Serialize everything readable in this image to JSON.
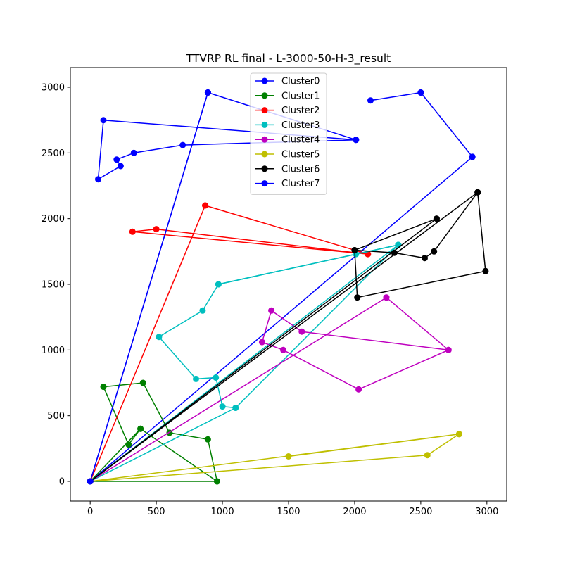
{
  "chart_data": {
    "type": "line",
    "title": "TTVRP RL final - L-3000-50-H-3_result",
    "xlabel": "",
    "ylabel": "",
    "xlim": [
      -150,
      3150
    ],
    "ylim": [
      -150,
      3150
    ],
    "x_ticks": [
      0,
      500,
      1000,
      1500,
      2000,
      2500,
      3000
    ],
    "y_ticks": [
      0,
      500,
      1000,
      1500,
      2000,
      2500,
      3000
    ],
    "x_tick_labels": [
      "0",
      "500",
      "1000",
      "1500",
      "2000",
      "2500",
      "3000"
    ],
    "y_tick_labels": [
      "0",
      "500",
      "1000",
      "1500",
      "2000",
      "2500",
      "3000"
    ],
    "grid": false,
    "legend_position": "top-center",
    "series": [
      {
        "name": "Cluster0",
        "color": "#0000ff",
        "routes": [
          [
            [
              0,
              0
            ],
            [
              890,
              2960
            ],
            [
              2010,
              2600
            ],
            [
              100,
              2750
            ],
            [
              60,
              2300
            ],
            [
              230,
              2400
            ],
            [
              200,
              2450
            ],
            [
              330,
              2500
            ],
            [
              700,
              2560
            ],
            [
              2010,
              2600
            ],
            [
              890,
              2960
            ],
            [
              0,
              0
            ]
          ],
          [
            [
              0,
              0
            ],
            [
              2890,
              2470
            ],
            [
              2500,
              2960
            ],
            [
              2120,
              2900
            ],
            [
              2500,
              2960
            ],
            [
              2890,
              2470
            ],
            [
              0,
              0
            ]
          ]
        ]
      },
      {
        "name": "Cluster1",
        "color": "#008000",
        "routes": [
          [
            [
              0,
              0
            ],
            [
              960,
              0
            ],
            [
              380,
              400
            ],
            [
              290,
              280
            ],
            [
              100,
              720
            ],
            [
              400,
              750
            ],
            [
              600,
              370
            ],
            [
              890,
              320
            ],
            [
              960,
              0
            ],
            [
              380,
              400
            ],
            [
              0,
              0
            ]
          ]
        ]
      },
      {
        "name": "Cluster2",
        "color": "#ff0000",
        "routes": [
          [
            [
              0,
              0
            ],
            [
              870,
              2100
            ],
            [
              2100,
              1730
            ],
            [
              500,
              1920
            ],
            [
              320,
              1900
            ],
            [
              2100,
              1730
            ],
            [
              870,
              2100
            ],
            [
              0,
              0
            ]
          ]
        ]
      },
      {
        "name": "Cluster3",
        "color": "#00bfbf",
        "routes": [
          [
            [
              0,
              0
            ],
            [
              1100,
              560
            ],
            [
              2330,
              1800
            ],
            [
              970,
              1500
            ],
            [
              850,
              1300
            ],
            [
              520,
              1100
            ],
            [
              800,
              780
            ],
            [
              950,
              790
            ],
            [
              1000,
              570
            ],
            [
              1100,
              560
            ],
            [
              0,
              0
            ]
          ],
          [
            [
              0,
              0
            ],
            [
              2330,
              1800
            ],
            [
              2010,
              1730
            ],
            [
              970,
              1500
            ],
            [
              2330,
              1800
            ],
            [
              0,
              0
            ]
          ]
        ]
      },
      {
        "name": "Cluster4",
        "color": "#bf00bf",
        "routes": [
          [
            [
              0,
              0
            ],
            [
              2240,
              1400
            ],
            [
              2710,
              1000
            ],
            [
              1600,
              1140
            ],
            [
              1370,
              1300
            ],
            [
              1300,
              1060
            ],
            [
              1460,
              1000
            ],
            [
              2030,
              700
            ],
            [
              2710,
              1000
            ],
            [
              2240,
              1400
            ],
            [
              0,
              0
            ]
          ]
        ]
      },
      {
        "name": "Cluster5",
        "color": "#bfbf00",
        "routes": [
          [
            [
              0,
              0
            ],
            [
              2790,
              360
            ],
            [
              1500,
              190
            ],
            [
              2790,
              360
            ],
            [
              2550,
              200
            ],
            [
              0,
              0
            ]
          ]
        ]
      },
      {
        "name": "Cluster6",
        "color": "#000000",
        "routes": [
          [
            [
              0,
              0
            ],
            [
              2930,
              2200
            ],
            [
              2990,
              1600
            ],
            [
              2020,
              1400
            ],
            [
              2000,
              1760
            ],
            [
              2300,
              1740
            ],
            [
              2530,
              1700
            ],
            [
              2600,
              1750
            ],
            [
              2930,
              2200
            ],
            [
              0,
              0
            ]
          ],
          [
            [
              0,
              0
            ],
            [
              2620,
              2000
            ],
            [
              2000,
              1760
            ],
            [
              2620,
              2000
            ],
            [
              0,
              0
            ]
          ]
        ]
      },
      {
        "name": "Cluster7",
        "color": "#0000ff",
        "routes": [
          [
            [
              0,
              0
            ],
            [
              890,
              2960
            ],
            [
              0,
              0
            ]
          ]
        ]
      }
    ]
  }
}
